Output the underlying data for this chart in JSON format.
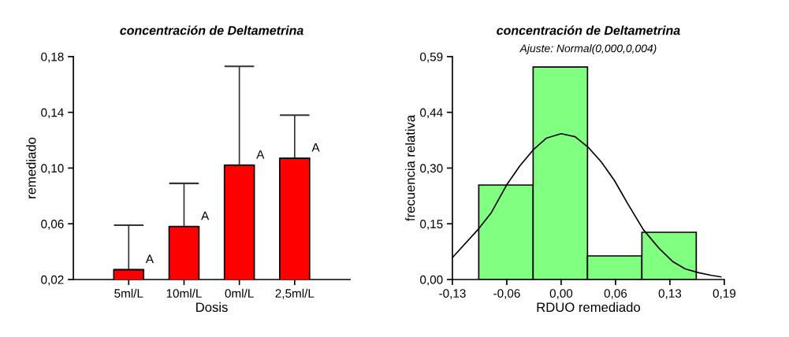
{
  "chart_data": [
    {
      "type": "bar",
      "title": "concentración de Deltametrina",
      "xlabel": "Dosis",
      "ylabel": "remediado",
      "categories": [
        "5ml/L",
        "10ml/L",
        "0ml/L",
        "2,5ml/L"
      ],
      "values": [
        0.027,
        0.058,
        0.102,
        0.107
      ],
      "color": "#ff0000",
      "errors": [
        [
          0.027,
          0.059
        ],
        [
          0.058,
          0.089
        ],
        [
          0.102,
          0.173
        ],
        [
          0.107,
          0.138
        ]
      ],
      "value_labels": [
        "A",
        "A",
        "A",
        "A"
      ],
      "ylim": [
        0.02,
        0.18
      ],
      "yticks": [
        {
          "value": 0.02,
          "label": "0,02"
        },
        {
          "value": 0.06,
          "label": "0,06"
        },
        {
          "value": 0.1,
          "label": "0,10"
        },
        {
          "value": 0.14,
          "label": "0,14"
        },
        {
          "value": 0.18,
          "label": "0,18"
        }
      ],
      "grid": false,
      "legend": false
    },
    {
      "type": "histogram",
      "title": "concentración de Deltametrina",
      "subtitle": "Ajuste: Normal(0,000,0,004)",
      "xlabel": "RDUO remediado",
      "ylabel": "frecuencia relativa",
      "series": [
        {
          "type": "histogram",
          "bins": [
            -0.097,
            -0.033,
            0.031,
            0.095,
            0.159
          ],
          "values": [
            0.25,
            0.5625,
            0.0625,
            0.125
          ],
          "color": "#80ff80"
        },
        {
          "type": "line",
          "color": "#000000",
          "x": [
            -0.128,
            -0.098,
            -0.0825,
            -0.064,
            -0.0485,
            -0.033,
            -0.0176,
            0.0,
            0.0164,
            0.0318,
            0.0473,
            0.0627,
            0.078,
            0.0967,
            0.115,
            0.131,
            0.146,
            0.162,
            0.177,
            0.188
          ],
          "values": [
            0.058,
            0.132,
            0.176,
            0.251,
            0.301,
            0.343,
            0.374,
            0.386,
            0.378,
            0.35,
            0.311,
            0.262,
            0.202,
            0.132,
            0.083,
            0.048,
            0.028,
            0.018,
            0.011,
            0.007
          ]
        }
      ],
      "xlim": [
        -0.128,
        0.192
      ],
      "xticks": [
        {
          "value": -0.128,
          "label": "-0,13"
        },
        {
          "value": -0.064,
          "label": "-0,06"
        },
        {
          "value": 0.0,
          "label": "0,00"
        },
        {
          "value": 0.064,
          "label": "0,06"
        },
        {
          "value": 0.128,
          "label": "0,13"
        },
        {
          "value": 0.192,
          "label": "0,19"
        }
      ],
      "ylim": [
        0.0,
        0.59
      ],
      "yticks": [
        {
          "value": 0.0,
          "label": "0,00"
        },
        {
          "value": 0.1475,
          "label": "0,15"
        },
        {
          "value": 0.295,
          "label": "0,30"
        },
        {
          "value": 0.4425,
          "label": "0,44"
        },
        {
          "value": 0.59,
          "label": "0,59"
        }
      ],
      "grid": false,
      "legend": false
    }
  ]
}
